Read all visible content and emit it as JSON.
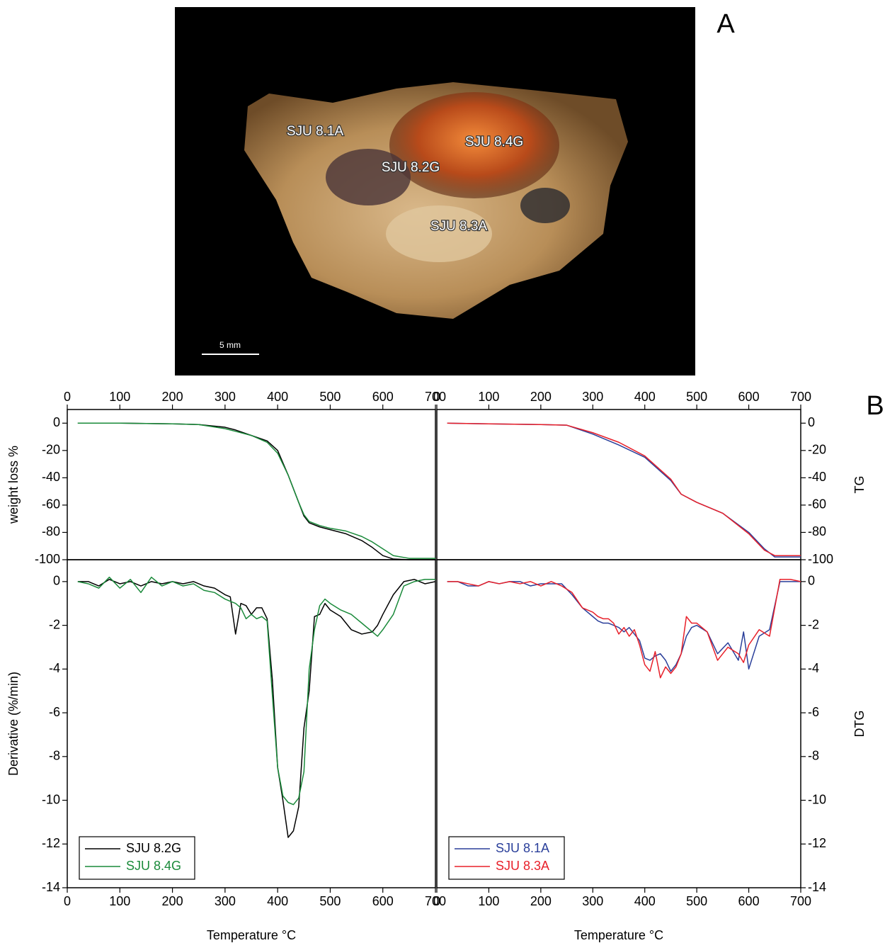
{
  "photo": {
    "panel_label": "A",
    "labels": [
      "SJU 8.1A",
      "SJU 8.4G",
      "SJU 8.2G",
      "SJU 8.3A"
    ],
    "scale_bar": "5 mm"
  },
  "panel_b_label": "B",
  "chart_data": [
    {
      "type": "line",
      "ylabel": "weight loss %",
      "x": [
        20,
        100,
        200,
        250,
        300,
        320,
        350,
        380,
        400,
        420,
        440,
        450,
        460,
        480,
        500,
        530,
        560,
        580,
        600,
        620,
        650,
        700
      ],
      "series": [
        {
          "color": "#000000",
          "values": [
            0,
            0,
            -0.5,
            -1,
            -3,
            -5,
            -9,
            -13,
            -20,
            -38,
            -58,
            -68,
            -73,
            -76,
            -78,
            -81,
            -86,
            -91,
            -97,
            -99.5,
            -100,
            -100
          ]
        },
        {
          "color": "#1a8a3a",
          "values": [
            0,
            0,
            -0.5,
            -1,
            -4,
            -6,
            -9,
            -14,
            -22,
            -38,
            -58,
            -67,
            -72,
            -75,
            -77,
            -79,
            -83,
            -87,
            -92,
            -97,
            -99,
            -99
          ]
        }
      ],
      "xlim": [
        0,
        700
      ],
      "xticks": [
        0,
        100,
        200,
        300,
        400,
        500,
        600,
        700
      ],
      "ylim": [
        -100,
        10
      ],
      "yticks": [
        -100,
        -80,
        -60,
        -40,
        -20,
        0
      ]
    },
    {
      "type": "line",
      "ylabel": "TG",
      "x": [
        20,
        100,
        200,
        250,
        300,
        350,
        400,
        450,
        470,
        500,
        550,
        600,
        630,
        650,
        700
      ],
      "series": [
        {
          "color": "#2a3f9a",
          "values": [
            0,
            -0.5,
            -1,
            -1.5,
            -8,
            -16,
            -25,
            -42,
            -52,
            -58,
            -66,
            -80,
            -92,
            -98,
            -98
          ]
        },
        {
          "color": "#e8202a",
          "values": [
            0,
            -0.5,
            -1,
            -1.5,
            -7,
            -14,
            -24,
            -41,
            -52,
            -58,
            -66,
            -81,
            -93,
            -97,
            -97
          ]
        }
      ],
      "xlim": [
        0,
        700
      ],
      "xticks": [
        0,
        100,
        200,
        300,
        400,
        500,
        600,
        700
      ],
      "ylim": [
        -100,
        10
      ],
      "yticks": [
        -100,
        -80,
        -60,
        -40,
        -20,
        0
      ]
    },
    {
      "type": "line",
      "ylabel": "Derivative (%/min)",
      "xlabel": "Temperature °C",
      "legend": "lower left",
      "x": [
        20,
        40,
        60,
        80,
        100,
        120,
        140,
        160,
        180,
        200,
        220,
        240,
        260,
        280,
        300,
        310,
        320,
        330,
        340,
        350,
        360,
        370,
        380,
        390,
        400,
        410,
        420,
        430,
        440,
        450,
        460,
        470,
        480,
        490,
        500,
        520,
        540,
        560,
        580,
        590,
        600,
        620,
        640,
        660,
        680,
        700
      ],
      "series": [
        {
          "name": "SJU 8.2G",
          "color": "#000000",
          "values": [
            0,
            0,
            -0.2,
            0.1,
            -0.1,
            0,
            -0.2,
            0,
            -0.1,
            0,
            -0.1,
            0,
            -0.2,
            -0.3,
            -0.6,
            -0.7,
            -2.4,
            -1,
            -1.1,
            -1.5,
            -1.2,
            -1.2,
            -1.7,
            -4.5,
            -8.5,
            -10,
            -11.7,
            -11.4,
            -10.3,
            -6.7,
            -5,
            -1.6,
            -1.5,
            -1,
            -1.3,
            -1.6,
            -2.2,
            -2.4,
            -2.3,
            -2,
            -1.5,
            -0.6,
            0,
            0.1,
            -0.1,
            0
          ]
        },
        {
          "name": "SJU 8.4G",
          "color": "#1a8a3a",
          "values": [
            0,
            -0.1,
            -0.3,
            0.2,
            -0.3,
            0.1,
            -0.5,
            0.2,
            -0.2,
            0,
            -0.2,
            -0.1,
            -0.4,
            -0.5,
            -0.8,
            -0.9,
            -1,
            -1.2,
            -1.7,
            -1.5,
            -1.7,
            -1.6,
            -1.8,
            -5.2,
            -8.5,
            -9.8,
            -10.1,
            -10.2,
            -9.9,
            -8.7,
            -4,
            -2.2,
            -1.1,
            -0.8,
            -1,
            -1.3,
            -1.5,
            -1.9,
            -2.3,
            -2.5,
            -2.2,
            -1.5,
            -0.2,
            0,
            0.1,
            0.1
          ]
        }
      ],
      "xlim": [
        0,
        700
      ],
      "xticks": [
        0,
        100,
        200,
        300,
        400,
        500,
        600,
        700
      ],
      "ylim": [
        -14,
        1
      ],
      "yticks": [
        -14,
        -12,
        -10,
        -8,
        -6,
        -4,
        -2,
        0
      ]
    },
    {
      "type": "line",
      "ylabel": "DTG",
      "xlabel": "Temperature °C",
      "legend": "lower left",
      "x": [
        20,
        40,
        60,
        80,
        100,
        120,
        140,
        160,
        180,
        200,
        220,
        240,
        260,
        280,
        300,
        310,
        320,
        330,
        340,
        350,
        360,
        370,
        380,
        390,
        400,
        410,
        420,
        430,
        440,
        450,
        460,
        470,
        480,
        490,
        500,
        520,
        540,
        560,
        580,
        590,
        600,
        620,
        640,
        660,
        680,
        700
      ],
      "series": [
        {
          "name": "SJU 8.1A",
          "color": "#2a3f9a",
          "values": [
            0,
            0,
            -0.2,
            -0.2,
            0,
            -0.1,
            0,
            0,
            -0.2,
            -0.1,
            -0.1,
            -0.1,
            -0.6,
            -1.2,
            -1.6,
            -1.8,
            -1.9,
            -1.9,
            -2,
            -2.1,
            -2.3,
            -2.1,
            -2.4,
            -2.7,
            -3.5,
            -3.6,
            -3.4,
            -3.3,
            -3.6,
            -4.1,
            -3.8,
            -3.3,
            -2.5,
            -2.1,
            -2,
            -2.3,
            -3.3,
            -2.8,
            -3.6,
            -2.3,
            -4,
            -2.5,
            -2.2,
            0,
            0,
            0
          ]
        },
        {
          "name": "SJU 8.3A",
          "color": "#e8202a",
          "values": [
            0,
            0,
            -0.1,
            -0.2,
            0,
            -0.1,
            0,
            -0.1,
            0,
            -0.2,
            0,
            -0.2,
            -0.5,
            -1.2,
            -1.4,
            -1.6,
            -1.7,
            -1.7,
            -1.9,
            -2.4,
            -2.1,
            -2.5,
            -2.2,
            -2.9,
            -3.8,
            -4.1,
            -3.2,
            -4.4,
            -3.9,
            -4.2,
            -3.9,
            -3.3,
            -1.6,
            -1.9,
            -1.9,
            -2.3,
            -3.6,
            -3,
            -3.3,
            -3.7,
            -2.9,
            -2.2,
            -2.5,
            0.1,
            0.1,
            0
          ]
        }
      ],
      "xlim": [
        0,
        700
      ],
      "xticks": [
        0,
        100,
        200,
        300,
        400,
        500,
        600,
        700
      ],
      "ylim": [
        -14,
        1
      ],
      "yticks": [
        -14,
        -12,
        -10,
        -8,
        -6,
        -4,
        -2,
        0
      ]
    }
  ]
}
